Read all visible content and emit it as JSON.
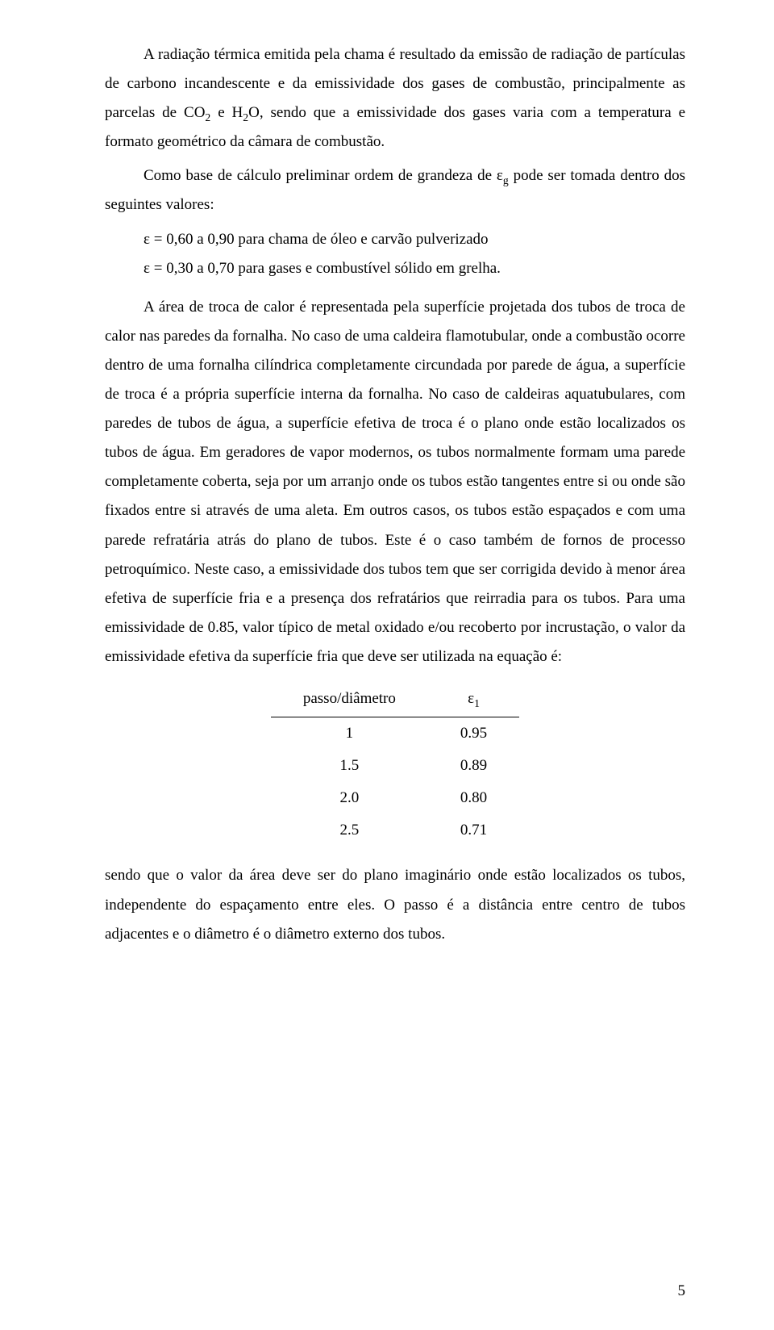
{
  "p1": "A radiação térmica emitida pela chama é resultado da emissão de radiação de partículas de carbono incandescente e da emissividade dos gases de combustão, principalmente as parcelas de CO",
  "p1_sub1": "2",
  "p1_mid": " e H",
  "p1_sub2": "2",
  "p1_tail": "O, sendo que a emissividade dos gases varia com a temperatura e formato geométrico da câmara de combustão.",
  "p2_a": "Como base de cálculo preliminar ordem de grandeza de ε",
  "p2_sub": "g",
  "p2_b": " pode ser tomada dentro dos seguintes valores:",
  "eps1": "ε = 0,60 a 0,90 para chama de óleo e carvão pulverizado",
  "eps2": "ε = 0,30 a 0,70 para gases e combustível sólido em grelha.",
  "p3": "A área de troca de calor é representada pela superfície projetada dos tubos de troca de calor nas paredes da fornalha. No caso de uma caldeira flamotubular, onde a combustão ocorre dentro de uma fornalha cilíndrica completamente circundada por parede de água, a superfície de troca é a própria superfície interna da fornalha. No caso de caldeiras aquatubulares, com paredes de tubos de água, a superfície efetiva de troca é o plano onde estão localizados os tubos de água.  Em geradores de vapor modernos, os tubos normalmente formam uma parede completamente coberta, seja por um arranjo onde os tubos estão tangentes entre si ou onde são fixados entre si através de uma aleta. Em outros casos, os tubos estão espaçados e com uma parede refratária atrás do plano de tubos.  Este é o caso também de fornos de processo petroquímico.  Neste caso, a emissividade dos tubos tem que ser corrigida devido à menor área efetiva de superfície fria e a presença dos refratários que reirradia para os tubos.  Para uma emissividade de 0.85, valor típico de metal oxidado e/ou recoberto por incrustação, o valor da emissividade efetiva da superfície fria que deve ser utilizada na equação é:",
  "table": {
    "header_left": "passo/diâmetro",
    "header_right_eps": "ε",
    "header_right_sub": "1",
    "rows": [
      {
        "l": "1",
        "r": "0.95"
      },
      {
        "l": "1.5",
        "r": "0.89"
      },
      {
        "l": "2.0",
        "r": "0.80"
      },
      {
        "l": "2.5",
        "r": "0.71"
      }
    ]
  },
  "p4": "sendo que o valor da área deve ser do plano imaginário onde estão localizados os tubos, independente do espaçamento entre eles. O passo é a distância entre centro de tubos adjacentes e o diâmetro é o diâmetro externo dos tubos.",
  "pagenum": "5"
}
